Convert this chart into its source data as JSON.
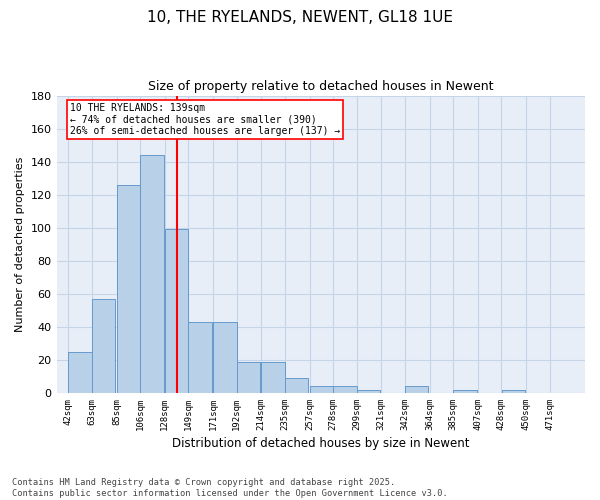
{
  "title1": "10, THE RYELANDS, NEWENT, GL18 1UE",
  "title2": "Size of property relative to detached houses in Newent",
  "xlabel": "Distribution of detached houses by size in Newent",
  "ylabel": "Number of detached properties",
  "bins": [
    42,
    63,
    85,
    106,
    128,
    149,
    171,
    192,
    214,
    235,
    257,
    278,
    299,
    321,
    342,
    364,
    385,
    407,
    428,
    450,
    471
  ],
  "values": [
    25,
    57,
    126,
    144,
    99,
    43,
    43,
    19,
    19,
    9,
    4,
    4,
    2,
    0,
    4,
    0,
    2,
    0,
    2,
    0,
    0
  ],
  "bar_color": "#b8d0e8",
  "bar_edge_color": "#6699cc",
  "vline_x": 139,
  "vline_color": "red",
  "annotation_text": "10 THE RYELANDS: 139sqm\n← 74% of detached houses are smaller (390)\n26% of semi-detached houses are larger (137) →",
  "annotation_box_color": "white",
  "annotation_box_edge": "red",
  "grid_color": "#c5d5e8",
  "background_color": "#e8eef8",
  "ylim": [
    0,
    180
  ],
  "yticks": [
    0,
    20,
    40,
    60,
    80,
    100,
    120,
    140,
    160,
    180
  ],
  "footnote": "Contains HM Land Registry data © Crown copyright and database right 2025.\nContains public sector information licensed under the Open Government Licence v3.0.",
  "tick_labels": [
    "42sqm",
    "63sqm",
    "85sqm",
    "106sqm",
    "128sqm",
    "149sqm",
    "171sqm",
    "192sqm",
    "214sqm",
    "235sqm",
    "257sqm",
    "278sqm",
    "299sqm",
    "321sqm",
    "342sqm",
    "364sqm",
    "385sqm",
    "407sqm",
    "428sqm",
    "450sqm",
    "471sqm"
  ]
}
